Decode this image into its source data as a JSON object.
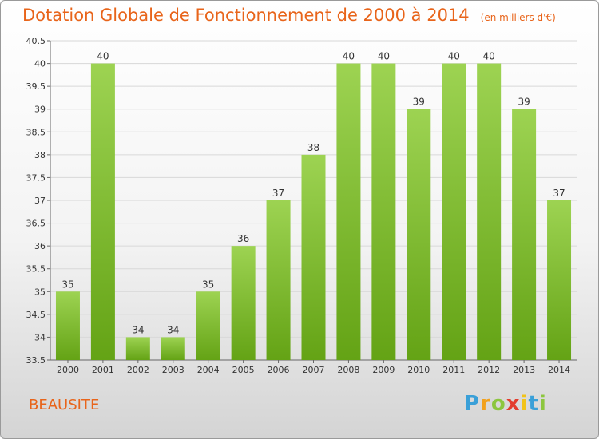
{
  "title": "Dotation Globale de Fonctionnement de 2000 à 2014",
  "unit_note": "(en milliers d'€)",
  "place_name": "BEAUSITE",
  "logo": {
    "letters": [
      "P",
      "r",
      "o",
      "x",
      "i",
      "t",
      "i"
    ]
  },
  "colors": {
    "bar_light": "#9dd352",
    "bar_dark": "#64a315",
    "title": "#e8641a",
    "grid": "#d8d8d8"
  },
  "chart_data": {
    "type": "bar",
    "title": "Dotation Globale de Fonctionnement de 2000 à 2014",
    "subtitle": "(en milliers d'€)",
    "xlabel": "",
    "ylabel": "",
    "ylim": [
      33.5,
      40.5
    ],
    "y_ticks": [
      "33.5",
      "34",
      "34.5",
      "35",
      "35.5",
      "36",
      "36.5",
      "37",
      "37.5",
      "38",
      "38.5",
      "39",
      "39.5",
      "40",
      "40.5"
    ],
    "categories": [
      "2000",
      "2001",
      "2002",
      "2003",
      "2004",
      "2005",
      "2006",
      "2007",
      "2008",
      "2009",
      "2010",
      "2011",
      "2012",
      "2013",
      "2014"
    ],
    "values": [
      35,
      40,
      34,
      34,
      35,
      36,
      37,
      38,
      40,
      40,
      39,
      40,
      40,
      39,
      37
    ],
    "labels": [
      "35",
      "40",
      "34",
      "34",
      "35",
      "36",
      "37",
      "38",
      "40",
      "40",
      "39",
      "40",
      "40",
      "39",
      "37"
    ],
    "grid": true,
    "legend": "none"
  }
}
